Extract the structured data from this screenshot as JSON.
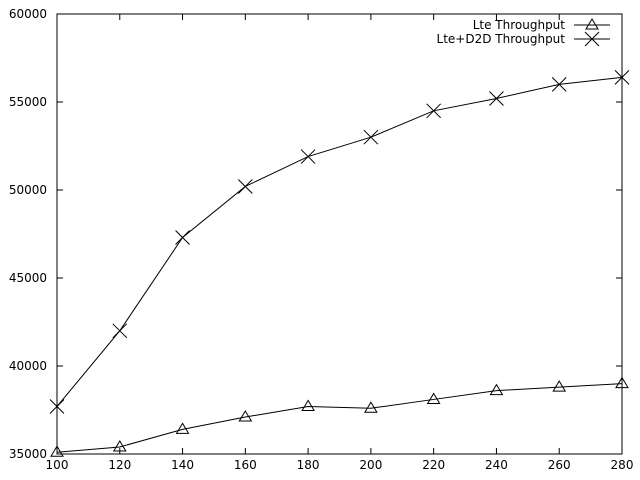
{
  "chart_data": {
    "type": "line",
    "title": "",
    "xlabel": "",
    "ylabel": "",
    "xlim": [
      100,
      280
    ],
    "ylim": [
      35000,
      60000
    ],
    "x": [
      100,
      120,
      140,
      160,
      180,
      200,
      220,
      240,
      260,
      280
    ],
    "xticks": [
      100,
      120,
      140,
      160,
      180,
      200,
      220,
      240,
      260,
      280
    ],
    "yticks": [
      35000,
      40000,
      45000,
      50000,
      55000,
      60000
    ],
    "grid": false,
    "legend_position": "top-right",
    "series": [
      {
        "name": "Lte Throughput",
        "marker": "triangle",
        "values": [
          35100,
          35400,
          36400,
          37100,
          37700,
          37600,
          38100,
          38600,
          38800,
          39000
        ]
      },
      {
        "name": "Lte+D2D Throughput",
        "marker": "cross",
        "values": [
          37700,
          42000,
          47300,
          50200,
          51900,
          53000,
          54500,
          55200,
          56000,
          56400
        ]
      }
    ]
  }
}
